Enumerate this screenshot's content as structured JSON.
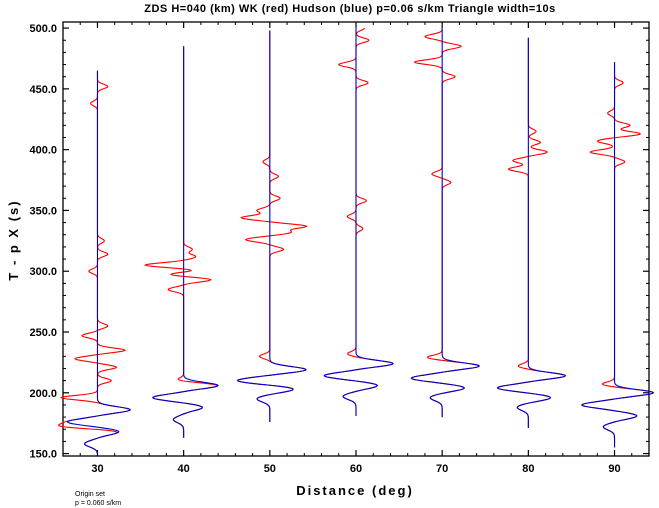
{
  "chart_data": {
    "type": "line",
    "title": "ZDS H=040 (km) WK (red) Hudson (blue) p=0.06 s/km Triangle width=10s",
    "xlabel": "Distance (deg)",
    "ylabel": "T - p X (s)",
    "xlim": [
      26,
      94
    ],
    "ylim": [
      148,
      505
    ],
    "x_ticks": [
      30,
      40,
      50,
      60,
      70,
      80,
      90
    ],
    "x_tick_labels": [
      "30",
      "40",
      "50",
      "60",
      "70",
      "80",
      "90"
    ],
    "y_ticks": [
      150,
      200,
      250,
      300,
      350,
      400,
      450,
      500
    ],
    "y_tick_labels": [
      "150.0",
      "200.0",
      "250.0",
      "300.0",
      "350.0",
      "400.0",
      "450.0",
      "500.0"
    ],
    "colors": {
      "WK": "#ff0000",
      "Hudson": "#0000cc"
    },
    "grid": false,
    "traces": [
      {
        "distance": 30,
        "t_start": 150,
        "t_end": 465,
        "arrival": 192,
        "pulses": [
          [
            186,
            3.8
          ],
          [
            176,
            -3.5
          ],
          [
            168,
            2.5
          ],
          [
            158,
            -1.5
          ]
        ],
        "wk_pulses": [
          [
            196,
            -4.2
          ],
          [
            172,
            -3.6
          ],
          [
            235,
            3.2
          ],
          [
            228,
            -2.6
          ],
          [
            221,
            2.2
          ],
          [
            247,
            -1.8
          ],
          [
            210,
            1.6
          ],
          [
            255,
            1.2
          ],
          [
            314,
            1.2
          ],
          [
            300,
            -1.0
          ],
          [
            325,
            0.8
          ],
          [
            452,
            1.2
          ],
          [
            438,
            -0.8
          ]
        ]
      },
      {
        "distance": 40,
        "t_start": 163,
        "t_end": 485,
        "arrival": 212,
        "pulses": [
          [
            206,
            4.0
          ],
          [
            196,
            -3.6
          ],
          [
            188,
            2.2
          ],
          [
            178,
            -1.2
          ]
        ],
        "wk_pulses": [
          [
            305,
            -4.5
          ],
          [
            293,
            3.2
          ],
          [
            298,
            -2.6
          ],
          [
            300,
            2.2
          ],
          [
            285,
            -1.8
          ],
          [
            312,
            1.4
          ],
          [
            318,
            1.0
          ],
          [
            210,
            -1.4
          ]
        ]
      },
      {
        "distance": 50,
        "t_start": 176,
        "t_end": 498,
        "arrival": 227,
        "pulses": [
          [
            219,
            4.2
          ],
          [
            210,
            -3.8
          ],
          [
            203,
            2.8
          ],
          [
            195,
            -1.5
          ]
        ],
        "wk_pulses": [
          [
            337,
            4.2
          ],
          [
            344,
            -3.3
          ],
          [
            326,
            -2.8
          ],
          [
            332,
            2.4
          ],
          [
            318,
            1.6
          ],
          [
            350,
            -1.5
          ],
          [
            360,
            1.2
          ],
          [
            378,
            1.0
          ],
          [
            390,
            -0.8
          ],
          [
            230,
            -1.2
          ]
        ]
      },
      {
        "distance": 60,
        "t_start": 181,
        "t_end": 500,
        "arrival": 231,
        "pulses": [
          [
            224,
            4.3
          ],
          [
            214,
            -3.7
          ],
          [
            206,
            2.5
          ],
          [
            197,
            -1.5
          ]
        ],
        "wk_pulses": [
          [
            470,
            -2.0
          ],
          [
            455,
            1.4
          ],
          [
            490,
            1.5
          ],
          [
            500,
            1.0
          ],
          [
            358,
            1.2
          ],
          [
            345,
            -1.0
          ],
          [
            335,
            0.8
          ],
          [
            232,
            -1.0
          ]
        ]
      },
      {
        "distance": 70,
        "t_start": 180,
        "t_end": 500,
        "arrival": 230,
        "pulses": [
          [
            222,
            4.3
          ],
          [
            212,
            -3.6
          ],
          [
            204,
            2.6
          ],
          [
            196,
            -1.4
          ]
        ],
        "wk_pulses": [
          [
            472,
            -3.2
          ],
          [
            485,
            2.2
          ],
          [
            493,
            -2.0
          ],
          [
            460,
            1.5
          ],
          [
            380,
            -1.2
          ],
          [
            373,
            1.0
          ],
          [
            229,
            -1.8
          ]
        ]
      },
      {
        "distance": 80,
        "t_start": 171,
        "t_end": 492,
        "arrival": 222,
        "pulses": [
          [
            214,
            4.3
          ],
          [
            204,
            -3.6
          ],
          [
            196,
            2.6
          ],
          [
            188,
            -1.3
          ]
        ],
        "wk_pulses": [
          [
            384,
            -2.3
          ],
          [
            398,
            2.2
          ],
          [
            391,
            -1.8
          ],
          [
            406,
            1.4
          ],
          [
            415,
            0.9
          ],
          [
            222,
            -1.2
          ]
        ]
      },
      {
        "distance": 90,
        "t_start": 155,
        "t_end": 472,
        "arrival": 207,
        "pulses": [
          [
            200,
            4.5
          ],
          [
            190,
            -3.8
          ],
          [
            181,
            2.6
          ],
          [
            172,
            -1.3
          ]
        ],
        "wk_pulses": [
          [
            398,
            -2.8
          ],
          [
            413,
            3.0
          ],
          [
            407,
            -2.0
          ],
          [
            420,
            1.8
          ],
          [
            390,
            1.2
          ],
          [
            430,
            -0.8
          ],
          [
            455,
            1.0
          ],
          [
            207,
            -1.5
          ]
        ]
      }
    ]
  },
  "footnote": {
    "line1": "Origin set",
    "line2": "p = 0.060 s/km"
  }
}
